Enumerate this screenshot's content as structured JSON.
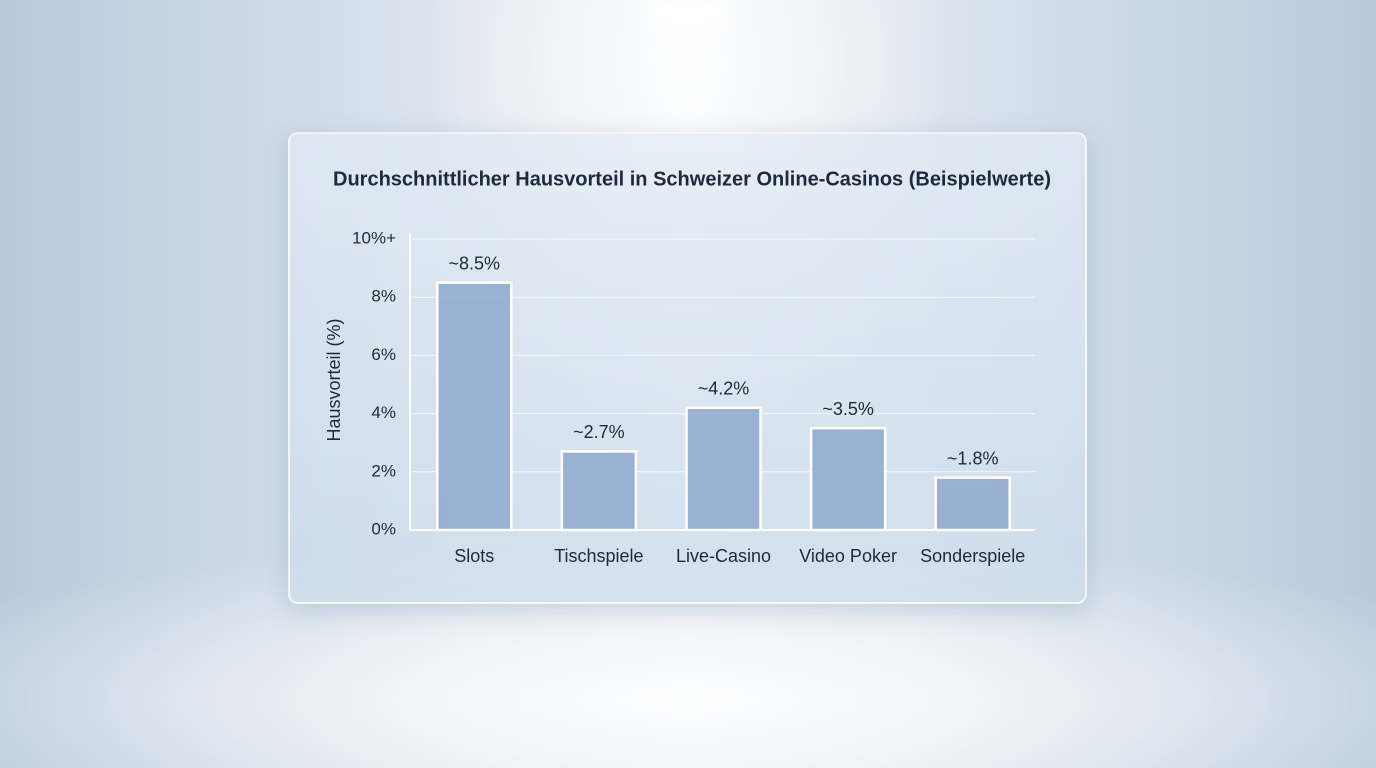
{
  "chart_data": {
    "type": "bar",
    "title": "Durchschnittlicher Hausvorteil in Schweizer Online-Casinos (Beispielwerte)",
    "y_label": "Hausvorteil (%)",
    "categories": [
      "Slots",
      "Tischspiele",
      "Live-Casino",
      "Video Poker",
      "Sonderspiele"
    ],
    "values": [
      8.5,
      2.7,
      4.2,
      3.5,
      1.8
    ],
    "value_labels": [
      "~8.5%",
      "~2.7%",
      "~4.2%",
      "~3.5%",
      "~1.8%"
    ],
    "color": "#8ea8cc",
    "ylim": [
      0,
      10
    ],
    "yticks": [
      {
        "value": 0,
        "label": "0%"
      },
      {
        "value": 2,
        "label": "2%"
      },
      {
        "value": 4,
        "label": "4%"
      },
      {
        "value": 6,
        "label": "6%"
      },
      {
        "value": 8,
        "label": "8%"
      },
      {
        "value": 10,
        "label": "10%+"
      }
    ],
    "grid": true
  }
}
